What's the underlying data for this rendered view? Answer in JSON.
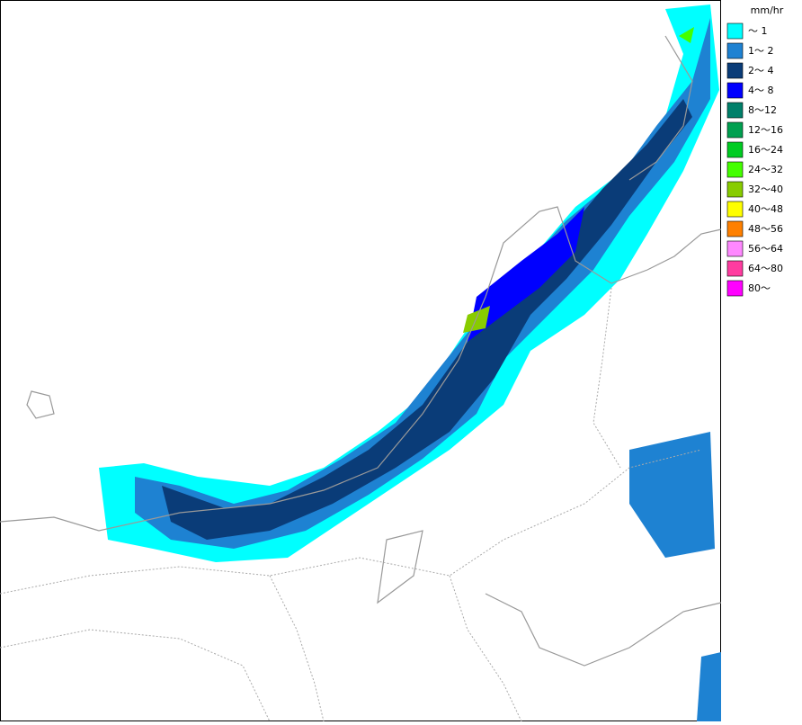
{
  "legend": {
    "unit": "mm/hr",
    "items": [
      {
        "label": "～ 1",
        "color": "#00ffff"
      },
      {
        "label": "1～ 2",
        "color": "#1e82d2"
      },
      {
        "label": "2～ 4",
        "color": "#0a3c78"
      },
      {
        "label": "4～ 8",
        "color": "#0000ff"
      },
      {
        "label": "8～12",
        "color": "#00806a"
      },
      {
        "label": "12～16",
        "color": "#00a050"
      },
      {
        "label": "16～24",
        "color": "#00cc22"
      },
      {
        "label": "24～32",
        "color": "#44ff00"
      },
      {
        "label": "32～40",
        "color": "#88cc00"
      },
      {
        "label": "40～48",
        "color": "#ffff00"
      },
      {
        "label": "48～56",
        "color": "#ff8000"
      },
      {
        "label": "56～64",
        "color": "#ff88ff"
      },
      {
        "label": "64～80",
        "color": "#ff3ca0"
      },
      {
        "label": "80～",
        "color": "#ff00ff"
      }
    ]
  }
}
